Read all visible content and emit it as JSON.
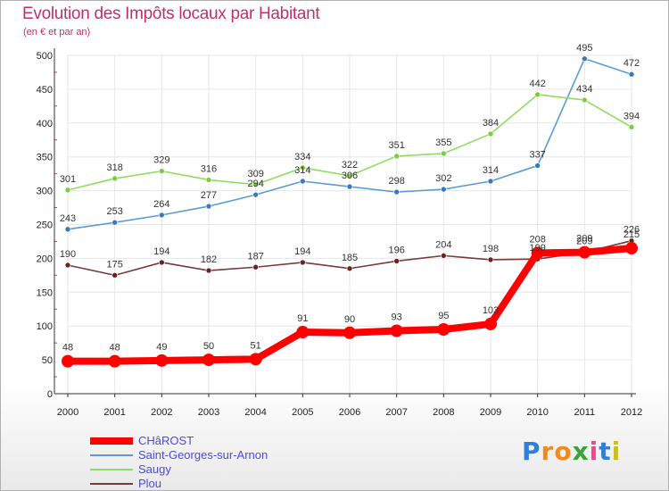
{
  "header": {
    "title": "Evolution des Impôts locaux par Habitant",
    "subtitle": "(en € et par an)"
  },
  "brand": {
    "letters": [
      {
        "ch": "P",
        "color": "#2f7fd8"
      },
      {
        "ch": "r",
        "color": "#f08a1c"
      },
      {
        "ch": "o",
        "color": "#f08a1c"
      },
      {
        "ch": "x",
        "color": "#3aa43a"
      },
      {
        "ch": "i",
        "color": "#e84a8a"
      },
      {
        "ch": "t",
        "color": "#2f7fd8"
      },
      {
        "ch": "i",
        "color": "#c8c020"
      }
    ]
  },
  "chart_data": {
    "type": "line",
    "x": [
      2000,
      2001,
      2002,
      2003,
      2004,
      2005,
      2006,
      2007,
      2008,
      2009,
      2010,
      2011,
      2012
    ],
    "ylim": [
      0,
      500
    ],
    "yticks": [
      0,
      50,
      100,
      150,
      200,
      250,
      300,
      350,
      400,
      450,
      500
    ],
    "grid": true,
    "legend_position": "bottom-left",
    "series": [
      {
        "name": "Saint-Georges-sur-Arnon",
        "color": "#5b9bd5",
        "marker": "#3a78c0",
        "values": [
          243,
          253,
          264,
          277,
          294,
          314,
          306,
          298,
          302,
          314,
          337,
          495,
          472
        ]
      },
      {
        "name": "Saugy",
        "color": "#90dc60",
        "marker": "#7ccc44",
        "values": [
          301,
          318,
          329,
          316,
          309,
          334,
          322,
          351,
          355,
          384,
          442,
          434,
          394
        ]
      },
      {
        "name": "Plou",
        "color": "#7a3a3a",
        "marker": "#6a2222",
        "values": [
          190,
          175,
          194,
          182,
          187,
          194,
          185,
          196,
          204,
          198,
          199,
          209,
          226
        ]
      },
      {
        "name": "CHâROST",
        "color": "#ff0000",
        "marker": "#ff0000",
        "values": [
          48,
          48,
          49,
          50,
          51,
          91,
          90,
          93,
          95,
          103,
          208,
          209,
          215
        ]
      }
    ]
  }
}
